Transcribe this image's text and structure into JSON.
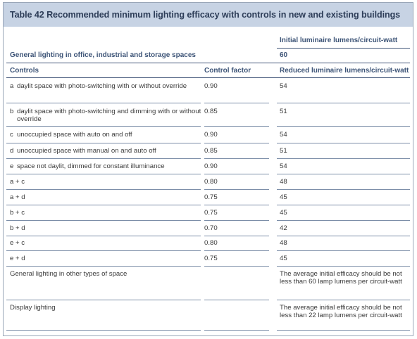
{
  "table": {
    "title": "Table 42  Recommended minimum lighting efficacy with controls in new and existing buildings",
    "header": {
      "initial_lumens_label": "Initial luminaire lumens/circuit-watt",
      "section_label": "General lighting in office, industrial and storage spaces",
      "initial_lumens_value": "60",
      "col_controls": "Controls",
      "col_control_factor": "Control factor",
      "col_reduced_lumens": "Reduced luminaire lumens/circuit-watt"
    },
    "rows": [
      {
        "letter": "a",
        "control": "daylit space with photo-switching with or without override",
        "factor": "0.90",
        "lumens": "54"
      },
      {
        "letter": "b",
        "control": "daylit space with photo-switching and dimming with or without override",
        "factor": "0.85",
        "lumens": "51"
      },
      {
        "letter": "c",
        "control": "unoccupied space with auto on and off",
        "factor": "0.90",
        "lumens": "54"
      },
      {
        "letter": "d",
        "control": "unoccupied space with manual on and auto off",
        "factor": "0.85",
        "lumens": "51"
      },
      {
        "letter": "e",
        "control": "space not daylit, dimmed for constant illuminance",
        "factor": "0.90",
        "lumens": "54"
      },
      {
        "letter": "",
        "control": "a + c",
        "factor": "0.80",
        "lumens": "48"
      },
      {
        "letter": "",
        "control": "a + d",
        "factor": "0.75",
        "lumens": "45"
      },
      {
        "letter": "",
        "control": "b + c",
        "factor": "0.75",
        "lumens": "45"
      },
      {
        "letter": "",
        "control": "b + d",
        "factor": "0.70",
        "lumens": "42"
      },
      {
        "letter": "",
        "control": "e + c",
        "factor": "0.80",
        "lumens": "48"
      },
      {
        "letter": "",
        "control": "e + d",
        "factor": "0.75",
        "lumens": "45"
      },
      {
        "letter": "",
        "control": "General lighting in other types of space",
        "factor": "",
        "lumens": "The average initial efficacy should be not less than 60 lamp lumens per circuit-watt"
      },
      {
        "letter": "",
        "control": "Display lighting",
        "factor": "",
        "lumens": "The average initial efficacy should be not less than 22 lamp lumens per circuit-watt"
      }
    ]
  }
}
